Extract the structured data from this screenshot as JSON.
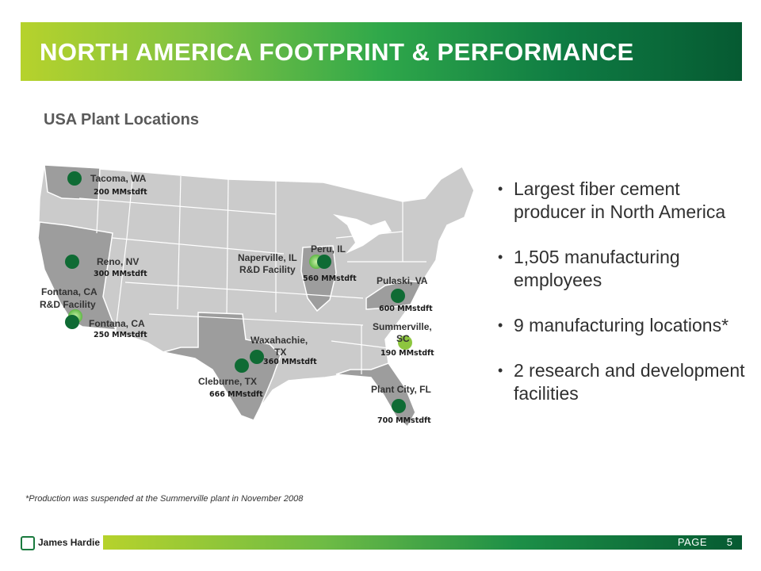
{
  "header": {
    "title": "NORTH AMERICA FOOTPRINT & PERFORMANCE"
  },
  "section": {
    "title": "USA Plant Locations"
  },
  "colors": {
    "plant_green": "#0f6b34",
    "suspended_green": "#8dc63f",
    "rd_green": "#7ec850",
    "map_gray": "#c9c9c9",
    "highlight_state": "#999999"
  },
  "map": {
    "plants": [
      {
        "name": "Tacoma, WA",
        "capacity": "200 MMstdft"
      },
      {
        "name": "Reno, NV",
        "capacity": "300 MMstdft"
      },
      {
        "name": "Fontana, CA R&D Facility"
      },
      {
        "name": "Fontana, CA",
        "capacity": "250 MMstdft"
      },
      {
        "name": "Naperville, IL R&D Facility"
      },
      {
        "name": "Peru, IL",
        "capacity": "560 MMstdft"
      },
      {
        "name": "Pulaski, VA",
        "capacity": "600 MMstdft"
      },
      {
        "name": "Summerville, SC",
        "capacity": "190 MMstdft"
      },
      {
        "name": "Waxahachie, TX",
        "capacity": "360 MMstdft"
      },
      {
        "name": "Cleburne, TX",
        "capacity": "666 MMstdft"
      },
      {
        "name": "Plant City, FL",
        "capacity": "700 MMstdft"
      }
    ],
    "labels": {
      "tacoma": "Tacoma, WA",
      "tacoma_cap": "200 MMstdft",
      "reno": "Reno, NV",
      "reno_cap": "300 MMstdft",
      "fontana_rd_line1": "Fontana, CA",
      "fontana_rd_line2": "R&D Facility",
      "fontana": "Fontana, CA",
      "fontana_cap": "250 MMstdft",
      "naperville_line1": "Naperville, IL",
      "naperville_line2": "R&D Facility",
      "peru": "Peru, IL",
      "peru_cap": "560 MMstdft",
      "pulaski": "Pulaski, VA",
      "pulaski_cap": "600 MMstdft",
      "summerville_line1": "Summerville,",
      "summerville_line2": "SC",
      "summerville_cap": "190 MMstdft",
      "waxahachie_line1": "Waxahachie,",
      "waxahachie_line2": "TX",
      "waxahachie_cap": "360 MMstdft",
      "cleburne": "Cleburne, TX",
      "cleburne_cap": "666 MMstdft",
      "plantcity": "Plant City, FL",
      "plantcity_cap": "700 MMstdft"
    }
  },
  "bullets": [
    "Largest fiber cement producer in North America",
    "1,505 manufacturing employees",
    "9 manufacturing locations*",
    "2 research and development facilities"
  ],
  "footnote": "*Production was suspended at the Summerville plant in November 2008",
  "footer": {
    "logo_text": "James Hardie",
    "page_label": "PAGE",
    "page_number": "5"
  }
}
